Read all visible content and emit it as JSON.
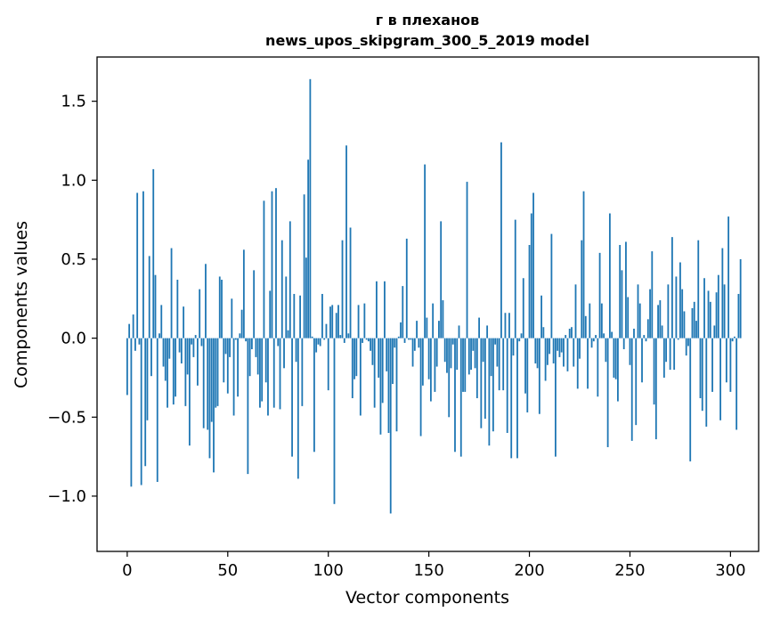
{
  "chart_data": {
    "type": "bar",
    "title": "г в плеханов",
    "subtitle": "news_upos_skipgram_300_5_2019 model",
    "xlabel": "Vector components",
    "ylabel": "Components values",
    "xlim": [
      -15,
      314
    ],
    "ylim": [
      -1.35,
      1.78
    ],
    "xticks": [
      0,
      50,
      100,
      150,
      200,
      250,
      300
    ],
    "yticks": [
      -1.0,
      -0.5,
      0.0,
      0.5,
      1.0,
      1.5
    ],
    "ytick_labels": [
      "−1.0",
      "−0.5",
      "0.0",
      "0.5",
      "1.0",
      "1.5"
    ],
    "xtick_labels": [
      "0",
      "50",
      "100",
      "150",
      "200",
      "250",
      "300"
    ],
    "grid": false,
    "bar_color": "#1f77b4",
    "values": [
      -0.36,
      0.09,
      -0.94,
      0.15,
      -0.08,
      0.92,
      -0.04,
      -0.93,
      0.93,
      -0.81,
      -0.52,
      0.52,
      -0.24,
      1.07,
      0.4,
      -0.91,
      0.03,
      0.21,
      -0.18,
      -0.27,
      -0.44,
      -0.13,
      0.57,
      -0.42,
      -0.37,
      0.37,
      -0.09,
      -0.16,
      0.2,
      -0.43,
      -0.23,
      -0.68,
      -0.04,
      -0.12,
      0.02,
      -0.3,
      0.31,
      -0.05,
      -0.57,
      0.47,
      -0.58,
      -0.76,
      -0.53,
      -0.85,
      -0.44,
      -0.43,
      0.39,
      0.37,
      -0.28,
      -0.1,
      -0.35,
      -0.12,
      0.25,
      -0.49,
      -0.01,
      -0.37,
      0.03,
      0.18,
      0.56,
      -0.02,
      -0.86,
      -0.24,
      -0.07,
      0.43,
      -0.12,
      -0.23,
      -0.44,
      -0.4,
      0.87,
      -0.28,
      -0.49,
      0.3,
      0.93,
      -0.44,
      0.95,
      -0.05,
      -0.45,
      0.62,
      -0.19,
      0.39,
      0.05,
      0.74,
      -0.75,
      0.28,
      -0.15,
      -0.89,
      0.27,
      -0.43,
      0.91,
      0.51,
      1.13,
      1.64,
      0.01,
      -0.72,
      -0.09,
      -0.04,
      -0.05,
      0.28,
      -0.01,
      0.09,
      -0.33,
      0.2,
      0.21,
      -1.05,
      0.16,
      0.21,
      0.02,
      0.62,
      -0.03,
      1.22,
      0.03,
      0.7,
      -0.38,
      -0.26,
      -0.24,
      0.21,
      -0.49,
      -0.03,
      0.22,
      -0.01,
      -0.02,
      -0.08,
      -0.17,
      -0.44,
      0.36,
      -0.25,
      -0.61,
      -0.41,
      0.36,
      -0.21,
      -0.6,
      -1.11,
      -0.29,
      -0.06,
      -0.59,
      0.01,
      0.1,
      0.33,
      -0.03,
      0.63,
      -0.01,
      -0.01,
      -0.18,
      -0.08,
      0.11,
      -0.06,
      -0.62,
      -0.3,
      1.1,
      0.13,
      -0.26,
      -0.4,
      0.22,
      -0.34,
      -0.18,
      0.11,
      0.74,
      0.24,
      -0.15,
      -0.22,
      -0.5,
      -0.19,
      -0.04,
      -0.72,
      -0.2,
      0.08,
      -0.75,
      -0.34,
      -0.34,
      0.99,
      -0.23,
      -0.2,
      -0.08,
      -0.19,
      -0.38,
      0.13,
      -0.57,
      -0.15,
      -0.51,
      0.08,
      -0.68,
      -0.24,
      -0.59,
      -0.04,
      -0.18,
      -0.33,
      1.24,
      -0.33,
      0.16,
      -0.6,
      0.16,
      -0.76,
      -0.11,
      0.75,
      -0.76,
      -0.02,
      0.03,
      0.38,
      -0.35,
      -0.47,
      0.59,
      0.79,
      0.92,
      -0.16,
      -0.19,
      -0.48,
      0.27,
      0.07,
      -0.27,
      -0.17,
      -0.1,
      0.66,
      -0.16,
      -0.75,
      -0.08,
      -0.12,
      -0.09,
      -0.18,
      0.02,
      -0.21,
      0.06,
      0.07,
      -0.18,
      0.34,
      -0.32,
      -0.13,
      0.62,
      0.93,
      0.14,
      -0.32,
      0.22,
      -0.06,
      -0.02,
      0.02,
      -0.37,
      0.54,
      0.22,
      0.03,
      -0.15,
      -0.69,
      0.79,
      0.04,
      -0.25,
      -0.26,
      -0.4,
      0.59,
      0.43,
      -0.07,
      0.61,
      0.26,
      -0.17,
      -0.65,
      0.06,
      -0.55,
      0.34,
      0.22,
      -0.28,
      0.02,
      -0.02,
      0.12,
      0.31,
      0.55,
      -0.42,
      -0.64,
      0.21,
      0.24,
      0.08,
      -0.25,
      -0.15,
      0.34,
      -0.2,
      0.64,
      -0.2,
      0.39,
      -0.01,
      0.48,
      0.31,
      0.17,
      -0.11,
      -0.05,
      -0.78,
      0.19,
      0.23,
      0.11,
      0.62,
      -0.38,
      -0.46,
      0.38,
      -0.56,
      0.3,
      0.23,
      -0.34,
      0.08,
      0.29,
      0.4,
      -0.52,
      0.57,
      0.34,
      -0.28,
      0.77,
      -0.34,
      -0.02,
      0.01,
      -0.58,
      0.28,
      0.5
    ]
  }
}
